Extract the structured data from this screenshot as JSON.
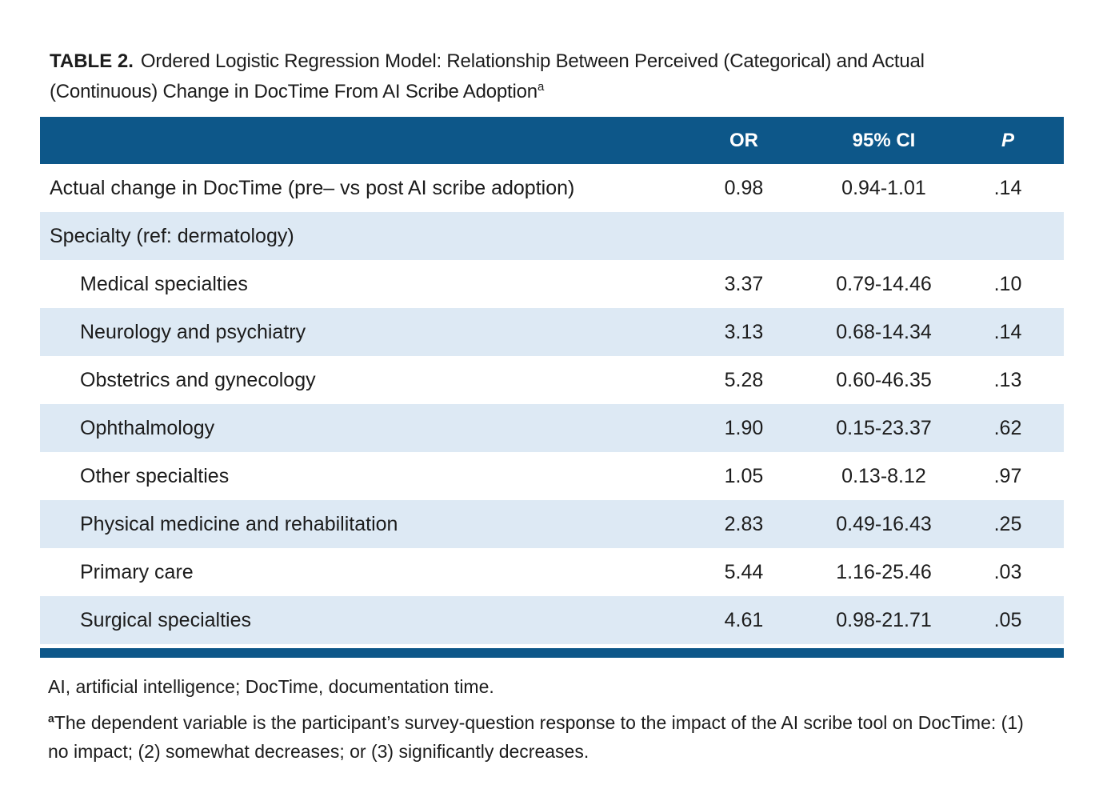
{
  "colors": {
    "header_blue": "#0d5789",
    "row_blue": "#dde9f4",
    "text_color": "#1c1c1c",
    "page_bg": "#ffffff"
  },
  "title": {
    "label": "TABLE 2.",
    "text": "Ordered Logistic Regression Model: Relationship Between Perceived (Categorical) and Actual (Continuous) Change in DocTime From AI Scribe Adoption",
    "superscript": "a"
  },
  "table": {
    "headers": [
      "OR",
      "95% CI",
      "P"
    ],
    "rows": [
      {
        "label": "Actual change in DocTime (pre– vs post AI scribe adoption)",
        "or": "0.98",
        "ci": "0.94-1.01",
        "p": ".14",
        "indent": false
      },
      {
        "label": "Specialty (ref: dermatology)",
        "or": "",
        "ci": "",
        "p": "",
        "indent": false
      },
      {
        "label": "Medical specialties",
        "or": "3.37",
        "ci": "0.79-14.46",
        "p": ".10",
        "indent": true
      },
      {
        "label": "Neurology and psychiatry",
        "or": "3.13",
        "ci": "0.68-14.34",
        "p": ".14",
        "indent": true
      },
      {
        "label": "Obstetrics and gynecology",
        "or": "5.28",
        "ci": "0.60-46.35",
        "p": ".13",
        "indent": true
      },
      {
        "label": "Ophthalmology",
        "or": "1.90",
        "ci": "0.15-23.37",
        "p": ".62",
        "indent": true
      },
      {
        "label": "Other specialties",
        "or": "1.05",
        "ci": "0.13-8.12",
        "p": ".97",
        "indent": true
      },
      {
        "label": "Physical medicine and rehabilitation",
        "or": "2.83",
        "ci": "0.49-16.43",
        "p": ".25",
        "indent": true
      },
      {
        "label": "Primary care",
        "or": "5.44",
        "ci": "1.16-25.46",
        "p": ".03",
        "indent": true
      },
      {
        "label": "Surgical specialties",
        "or": "4.61",
        "ci": "0.98-21.71",
        "p": ".05",
        "indent": true
      }
    ]
  },
  "footnotes": {
    "abbreviations": "AI, artificial intelligence; DocTime, documentation time.",
    "note_superscript": "a",
    "note_text": "The dependent variable is the participant’s survey-question response to the impact of the AI scribe tool on DocTime: (1) no impact; (2) somewhat decreases; or (3) significantly decreases."
  }
}
